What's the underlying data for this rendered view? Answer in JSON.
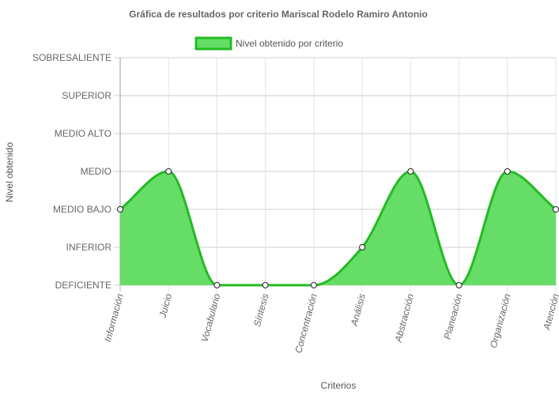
{
  "chart_data": {
    "type": "area",
    "title": "Gráfica de resultados por criterio Mariscal Rodelo Ramiro Antonio",
    "xlabel": "Criterios",
    "ylabel": "Nivel obtenido",
    "levels": [
      "DEFICIENTE",
      "INFERIOR",
      "MEDIO BAJO",
      "MEDIO",
      "MEDIO ALTO",
      "SUPERIOR",
      "SOBRESALIENTE"
    ],
    "categories": [
      "Información",
      "Juicio",
      "Vocabulario",
      "Síntesis",
      "Concentración",
      "Análisis",
      "Abstracción",
      "Planeación",
      "Organización",
      "Atención"
    ],
    "ylim": [
      0,
      6
    ],
    "grid": true,
    "legend_position": "top",
    "series": [
      {
        "name": "Nivel obtenido por criterio",
        "values": [
          2,
          3,
          0,
          0,
          0,
          1,
          3,
          0,
          3,
          2
        ],
        "fill_color": "#66dd66",
        "line_color": "#22bb22"
      }
    ]
  }
}
